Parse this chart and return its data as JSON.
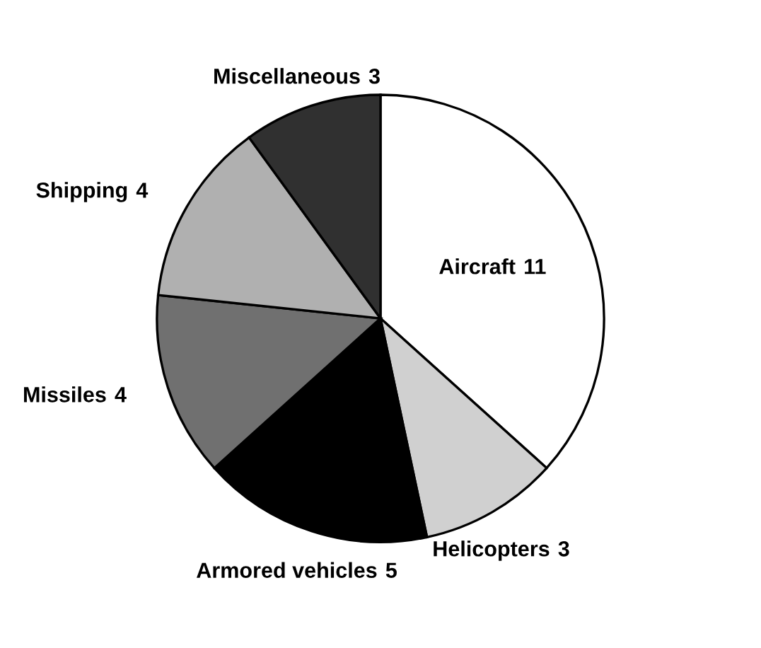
{
  "chart_data": {
    "type": "pie",
    "categories": [
      "Aircraft",
      "Helicopters",
      "Armored vehicles",
      "Missiles",
      "Shipping",
      "Miscellaneous"
    ],
    "values": [
      11,
      3,
      5,
      4,
      4,
      3
    ],
    "colors": [
      "#ffffff",
      "#d0d0d0",
      "#000000",
      "#707070",
      "#b0b0b0",
      "#303030"
    ],
    "data_labels": true
  }
}
